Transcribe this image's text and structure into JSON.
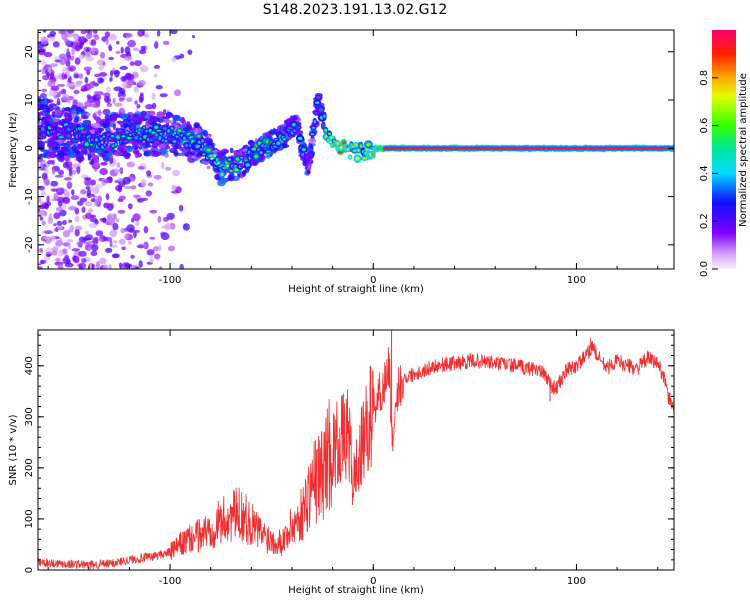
{
  "figure": {
    "title": "S148.2023.191.13.02.G12"
  },
  "chart_data": [
    {
      "type": "heatmap",
      "xlabel": "Height of straight line (km)",
      "ylabel": "Frequency (Hz)",
      "xlim": [
        -165,
        148
      ],
      "ylim": [
        -25,
        24.5
      ],
      "x_ticks": [
        "-100",
        "0",
        "100"
      ],
      "y_ticks": [
        "-20",
        "-10",
        "0",
        "10",
        "20"
      ],
      "colorbar": {
        "label": "Normalized spectral amplitude",
        "range": [
          0,
          1
        ],
        "ticks": [
          "0.0",
          "0.2",
          "0.4",
          "0.6",
          "0.8"
        ]
      },
      "ridge": [
        {
          "x": -160,
          "f": 4,
          "amp": 0.35
        },
        {
          "x": -145,
          "f": 3,
          "amp": 0.45
        },
        {
          "x": -135,
          "f": 1,
          "amp": 0.4
        },
        {
          "x": -120,
          "f": 3,
          "amp": 0.45
        },
        {
          "x": -110,
          "f": 3,
          "amp": 0.45
        },
        {
          "x": -100,
          "f": 3,
          "amp": 0.5
        },
        {
          "x": -85,
          "f": 1,
          "amp": 0.5
        },
        {
          "x": -75,
          "f": -4,
          "amp": 0.55
        },
        {
          "x": -65,
          "f": -3,
          "amp": 0.5
        },
        {
          "x": -55,
          "f": 0,
          "amp": 0.55
        },
        {
          "x": -45,
          "f": 2,
          "amp": 0.5
        },
        {
          "x": -38,
          "f": 5,
          "amp": 0.45
        },
        {
          "x": -32,
          "f": -4,
          "amp": 0.35
        },
        {
          "x": -27,
          "f": 10,
          "amp": 0.35
        },
        {
          "x": -22,
          "f": 2,
          "amp": 0.6
        },
        {
          "x": -15,
          "f": 0,
          "amp": 0.8
        },
        {
          "x": -5,
          "f": -1,
          "amp": 0.55
        },
        {
          "x": 0,
          "f": 0,
          "amp": 0.7
        },
        {
          "x": 5,
          "f": 0,
          "amp": 1.0
        },
        {
          "x": 70,
          "f": 0,
          "amp": 1.0
        },
        {
          "x": 75,
          "f": 0,
          "amp": 0.7
        },
        {
          "x": 85,
          "f": 0,
          "amp": 0.9
        },
        {
          "x": 95,
          "f": 0,
          "amp": 0.75
        },
        {
          "x": 110,
          "f": 0,
          "amp": 0.7
        },
        {
          "x": 130,
          "f": 0,
          "amp": 0.85
        },
        {
          "x": 148,
          "f": 0,
          "amp": 0.9
        }
      ]
    },
    {
      "type": "line",
      "xlabel": "Height of straight line (km)",
      "ylabel": "SNR (10 * v/v)",
      "xlim": [
        -165,
        148
      ],
      "ylim": [
        0,
        470
      ],
      "x_ticks": [
        "-100",
        "0",
        "100"
      ],
      "y_ticks": [
        "0",
        "100",
        "200",
        "300",
        "400"
      ],
      "color": "#ee3030",
      "series": [
        {
          "x": [
            -165,
            -150,
            -140,
            -130,
            -120,
            -110,
            -100,
            -95,
            -90,
            -85,
            -80,
            -75,
            -70,
            -65,
            -60,
            -55,
            -50,
            -45,
            -40,
            -35,
            -30,
            -25,
            -22,
            -18,
            -14,
            -12,
            -10,
            -5,
            0,
            5,
            8,
            9,
            10,
            12,
            15,
            20,
            25,
            30,
            40,
            50,
            60,
            70,
            75,
            80,
            85,
            88,
            90,
            95,
            100,
            105,
            108,
            110,
            115,
            120,
            125,
            130,
            135,
            140,
            143,
            145,
            148
          ],
          "y": [
            15,
            12,
            10,
            12,
            20,
            25,
            35,
            50,
            60,
            70,
            80,
            95,
            105,
            110,
            90,
            70,
            60,
            55,
            85,
            110,
            170,
            190,
            230,
            245,
            260,
            265,
            170,
            250,
            320,
            360,
            400,
            280,
            230,
            355,
            375,
            385,
            390,
            400,
            405,
            410,
            405,
            400,
            395,
            395,
            380,
            360,
            355,
            390,
            400,
            420,
            440,
            420,
            395,
            410,
            400,
            395,
            415,
            405,
            380,
            340,
            320
          ]
        }
      ],
      "spikes": [
        {
          "x": 9,
          "y": 470
        },
        {
          "x": 107,
          "y": 455
        },
        {
          "x": 87,
          "y": 330
        }
      ]
    }
  ]
}
